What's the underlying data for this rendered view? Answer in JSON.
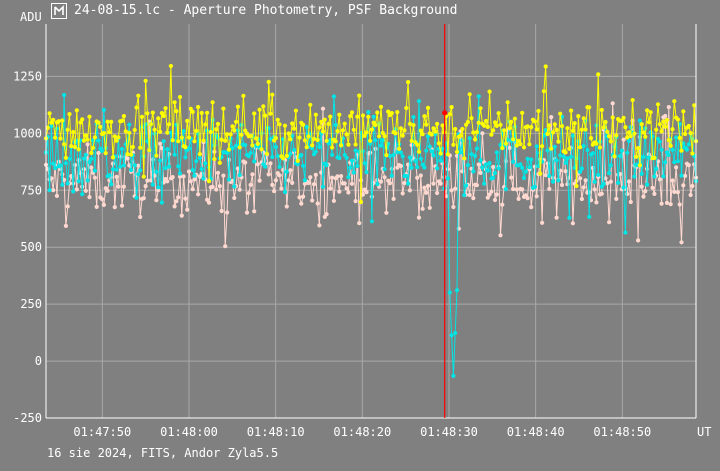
{
  "window": {
    "title": "24-08-15.lc - Aperture Photometry, PSF Background",
    "icon": "light-curve-app-icon"
  },
  "footer": {
    "caption": "16 sie 2024, FITS, Andor Zyla5.5"
  },
  "colors": {
    "background": "#808080",
    "grid": "#a8a8a8",
    "axis": "#ffffff",
    "cursor": "#ff0000",
    "series_yellow": "#ffff00",
    "series_cyan": "#00e5e5",
    "series_pink": "#ffd8d0"
  },
  "chart_data": {
    "type": "line",
    "ylabel": "ADU",
    "xlabel": "UT",
    "ylim": [
      -250,
      1480
    ],
    "xlim_seconds_after_01_47_40": [
      3.5,
      78.5
    ],
    "y_ticks": [
      -250,
      0,
      250,
      500,
      750,
      1000,
      1250
    ],
    "y_tick_labels": [
      "-250",
      "0",
      "250",
      "500",
      "750",
      "1000",
      "1250"
    ],
    "x_tick_labels": [
      "01:47:50",
      "01:48:00",
      "01:48:10",
      "01:48:20",
      "01:48:30",
      "01:48:40",
      "01:48:50"
    ],
    "grid": true,
    "cursor_time": "01:48:29.5",
    "series": [
      {
        "color": "yellow",
        "start": "01:47:43.5",
        "end": "01:48:58.5",
        "mean": 1020,
        "scatter": 90,
        "points": 360
      },
      {
        "color": "cyan",
        "start": "01:47:43.5",
        "end": "01:48:58.5",
        "mean": 900,
        "scatter": 110,
        "points": 360,
        "dip": {
          "time": "01:48:30.5",
          "min": -70
        }
      },
      {
        "color": "pink",
        "start": "01:47:43.5",
        "end": "01:48:58.5",
        "mean": 790,
        "scatter": 100,
        "points": 360
      }
    ]
  }
}
